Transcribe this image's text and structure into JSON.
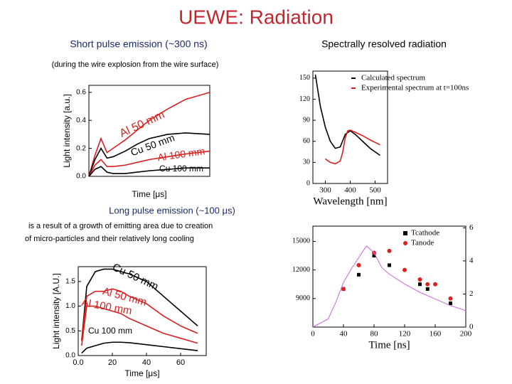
{
  "slide": {
    "title": "UEWE: Radiation",
    "left_heading": "Short pulse emission (~300 ns)",
    "right_heading": "Spectrally resolved radiation",
    "short_note": "(during the wire explosion from the wire surface)",
    "long_heading": "Long pulse emission (~100 μs)",
    "long_note_1": "is a result of a growth of emitting area due to creation",
    "long_note_2": "of micro-particles and their relatively long cooling"
  },
  "chart_data": [
    {
      "type": "line",
      "xlabel": "Time [μs]",
      "ylabel": "Light intensity [a.u.]",
      "x": [
        0,
        0.1,
        0.2,
        0.3,
        0.4,
        0.6,
        0.8,
        1.0,
        1.3,
        1.6,
        2.0
      ],
      "xlim": [
        0,
        2
      ],
      "ylim": [
        0,
        0.65
      ],
      "yticks": [
        {
          "value": 0,
          "label": "0.0"
        },
        {
          "value": 0.2,
          "label": "0.2"
        },
        {
          "value": 0.4,
          "label": "0.4"
        },
        {
          "value": 0.6,
          "label": "0.6"
        }
      ],
      "series": [
        {
          "name": "Al 50 mm",
          "color": "#d62020",
          "values": [
            0,
            0.15,
            0.27,
            0.17,
            0.2,
            0.26,
            0.33,
            0.4,
            0.48,
            0.55,
            0.6
          ]
        },
        {
          "name": "Cu 50 mm",
          "color": "#000000",
          "values": [
            0,
            0.12,
            0.2,
            0.13,
            0.14,
            0.18,
            0.23,
            0.27,
            0.3,
            0.31,
            0.3
          ]
        },
        {
          "name": "Al 100 mm",
          "color": "#d62020",
          "values": [
            0,
            0.08,
            0.12,
            0.07,
            0.07,
            0.08,
            0.1,
            0.12,
            0.14,
            0.16,
            0.18
          ]
        },
        {
          "name": "Cu 100 mm",
          "color": "#000000",
          "values": [
            0,
            0.05,
            0.07,
            0.03,
            0.02,
            0.02,
            0.03,
            0.04,
            0.05,
            0.06,
            0.06
          ]
        }
      ]
    },
    {
      "type": "line",
      "xlabel": "Wavelength [nm]",
      "xlim": [
        250,
        550
      ],
      "ylim": [
        0,
        160
      ],
      "xticks": [
        300,
        400,
        500
      ],
      "yticks": [
        0,
        30,
        60,
        90,
        120,
        150
      ],
      "series": [
        {
          "name": "Calculated spectrum",
          "color": "#000000",
          "x": [
            260,
            280,
            300,
            320,
            340,
            360,
            380,
            400,
            420,
            450,
            480,
            520
          ],
          "values": [
            155,
            110,
            80,
            60,
            50,
            52,
            70,
            75,
            70,
            60,
            50,
            40
          ]
        },
        {
          "name": "Experimental spectrum at t=100ns",
          "color": "#d62020",
          "x": [
            300,
            320,
            340,
            360,
            370,
            380,
            390,
            400,
            420,
            450,
            480,
            520
          ],
          "values": [
            35,
            30,
            28,
            32,
            45,
            65,
            75,
            76,
            73,
            68,
            62,
            55
          ]
        }
      ]
    },
    {
      "type": "line",
      "xlabel": "Time [μs]",
      "ylabel": "Light intensity [A.U.]",
      "x": [
        2,
        5,
        10,
        15,
        20,
        25,
        30,
        40,
        50,
        60,
        70
      ],
      "xlim": [
        0,
        75
      ],
      "ylim": [
        0,
        1.8
      ],
      "xticks": [
        {
          "value": 0,
          "label": "0.0"
        },
        20,
        40,
        60
      ],
      "yticks": [
        {
          "value": 0,
          "label": "0.0"
        },
        {
          "value": 0.5,
          "label": "0.5"
        },
        {
          "value": 1,
          "label": "1.0"
        },
        {
          "value": 1.5,
          "label": "1.5"
        }
      ],
      "series": [
        {
          "name": "Cu 50 mm",
          "color": "#000000",
          "values": [
            0.3,
            1.4,
            1.7,
            1.75,
            1.75,
            1.7,
            1.65,
            1.5,
            1.2,
            0.9,
            0.6
          ]
        },
        {
          "name": "Al 50 mm",
          "color": "#d62020",
          "values": [
            0.3,
            1.2,
            1.3,
            1.3,
            1.35,
            1.3,
            1.2,
            1.05,
            0.8,
            0.6,
            0.45
          ]
        },
        {
          "name": "Al 100 mm",
          "color": "#d62020",
          "values": [
            0.2,
            1.0,
            1.0,
            0.95,
            0.9,
            0.85,
            0.75,
            0.6,
            0.45,
            0.35,
            0.25
          ]
        },
        {
          "name": "Cu 100 mm",
          "color": "#000000",
          "values": [
            0.05,
            0.15,
            0.2,
            0.25,
            0.27,
            0.27,
            0.26,
            0.22,
            0.18,
            0.14,
            0.1
          ]
        }
      ]
    },
    {
      "type": "scatter",
      "xlabel": "Time [ns]",
      "xlim": [
        0,
        200
      ],
      "ylim": [
        6000,
        16600
      ],
      "y2lim": [
        0,
        6.1
      ],
      "xticks": [
        0,
        40,
        80,
        120,
        160,
        200
      ],
      "yticks": [
        9000,
        12000,
        15000
      ],
      "y2ticks": [
        0,
        2,
        4,
        6
      ],
      "series": [
        {
          "name": "Tcathode",
          "color": "#000000",
          "x": [
            40,
            60,
            80,
            100,
            140,
            150,
            180
          ],
          "values": [
            10000,
            11500,
            13500,
            12500,
            10500,
            10000,
            8500
          ]
        },
        {
          "name": "Tanode",
          "color": "#e02020",
          "x": [
            40,
            60,
            80,
            100,
            120,
            140,
            150,
            160,
            180
          ],
          "values": [
            10000,
            12500,
            13800,
            14000,
            12000,
            11000,
            10500,
            10500,
            9000
          ]
        },
        {
          "color": "#cc66dd",
          "mode": "line",
          "axis": "y2",
          "x": [
            0,
            20,
            30,
            40,
            50,
            60,
            70,
            80,
            90,
            100,
            120,
            140,
            160,
            180,
            200
          ],
          "values": [
            0,
            0.5,
            1.5,
            2.7,
            3.5,
            4.2,
            4.9,
            4.5,
            3.6,
            3.2,
            2.6,
            2.1,
            1.7,
            1.3,
            1.0
          ]
        }
      ]
    }
  ]
}
